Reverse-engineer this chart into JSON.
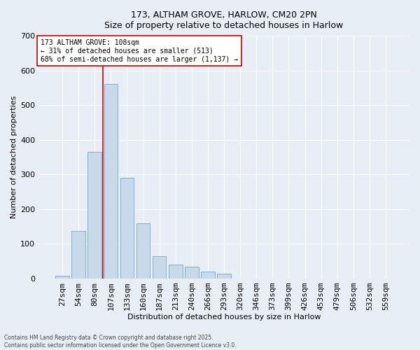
{
  "title_line1": "173, ALTHAM GROVE, HARLOW, CM20 2PN",
  "title_line2": "Size of property relative to detached houses in Harlow",
  "xlabel": "Distribution of detached houses by size in Harlow",
  "ylabel": "Number of detached properties",
  "bar_color": "#c8d9ea",
  "bar_edge_color": "#6fa8d0",
  "background_color": "#e8eef6",
  "grid_color": "#ffffff",
  "categories": [
    "27sqm",
    "54sqm",
    "80sqm",
    "107sqm",
    "133sqm",
    "160sqm",
    "187sqm",
    "213sqm",
    "240sqm",
    "266sqm",
    "293sqm",
    "320sqm",
    "346sqm",
    "373sqm",
    "399sqm",
    "426sqm",
    "453sqm",
    "479sqm",
    "506sqm",
    "532sqm",
    "559sqm"
  ],
  "values": [
    8,
    137,
    365,
    560,
    290,
    160,
    65,
    40,
    35,
    20,
    15,
    0,
    0,
    0,
    0,
    0,
    0,
    0,
    0,
    0,
    0
  ],
  "ylim": [
    0,
    700
  ],
  "yticks": [
    0,
    100,
    200,
    300,
    400,
    500,
    600,
    700
  ],
  "annotation_text": "173 ALTHAM GROVE: 108sqm\n← 31% of detached houses are smaller (513)\n68% of semi-detached houses are larger (1,137) →",
  "vline_color": "#cc0000",
  "vline_x": 3.0,
  "annotation_box_facecolor": "#ffffff",
  "annotation_box_edgecolor": "#cc0000",
  "footnote_line1": "Contains HM Land Registry data © Crown copyright and database right 2025.",
  "footnote_line2": "Contains public sector information licensed under the Open Government Licence v3.0.",
  "figwidth": 6.0,
  "figheight": 5.0,
  "dpi": 100
}
